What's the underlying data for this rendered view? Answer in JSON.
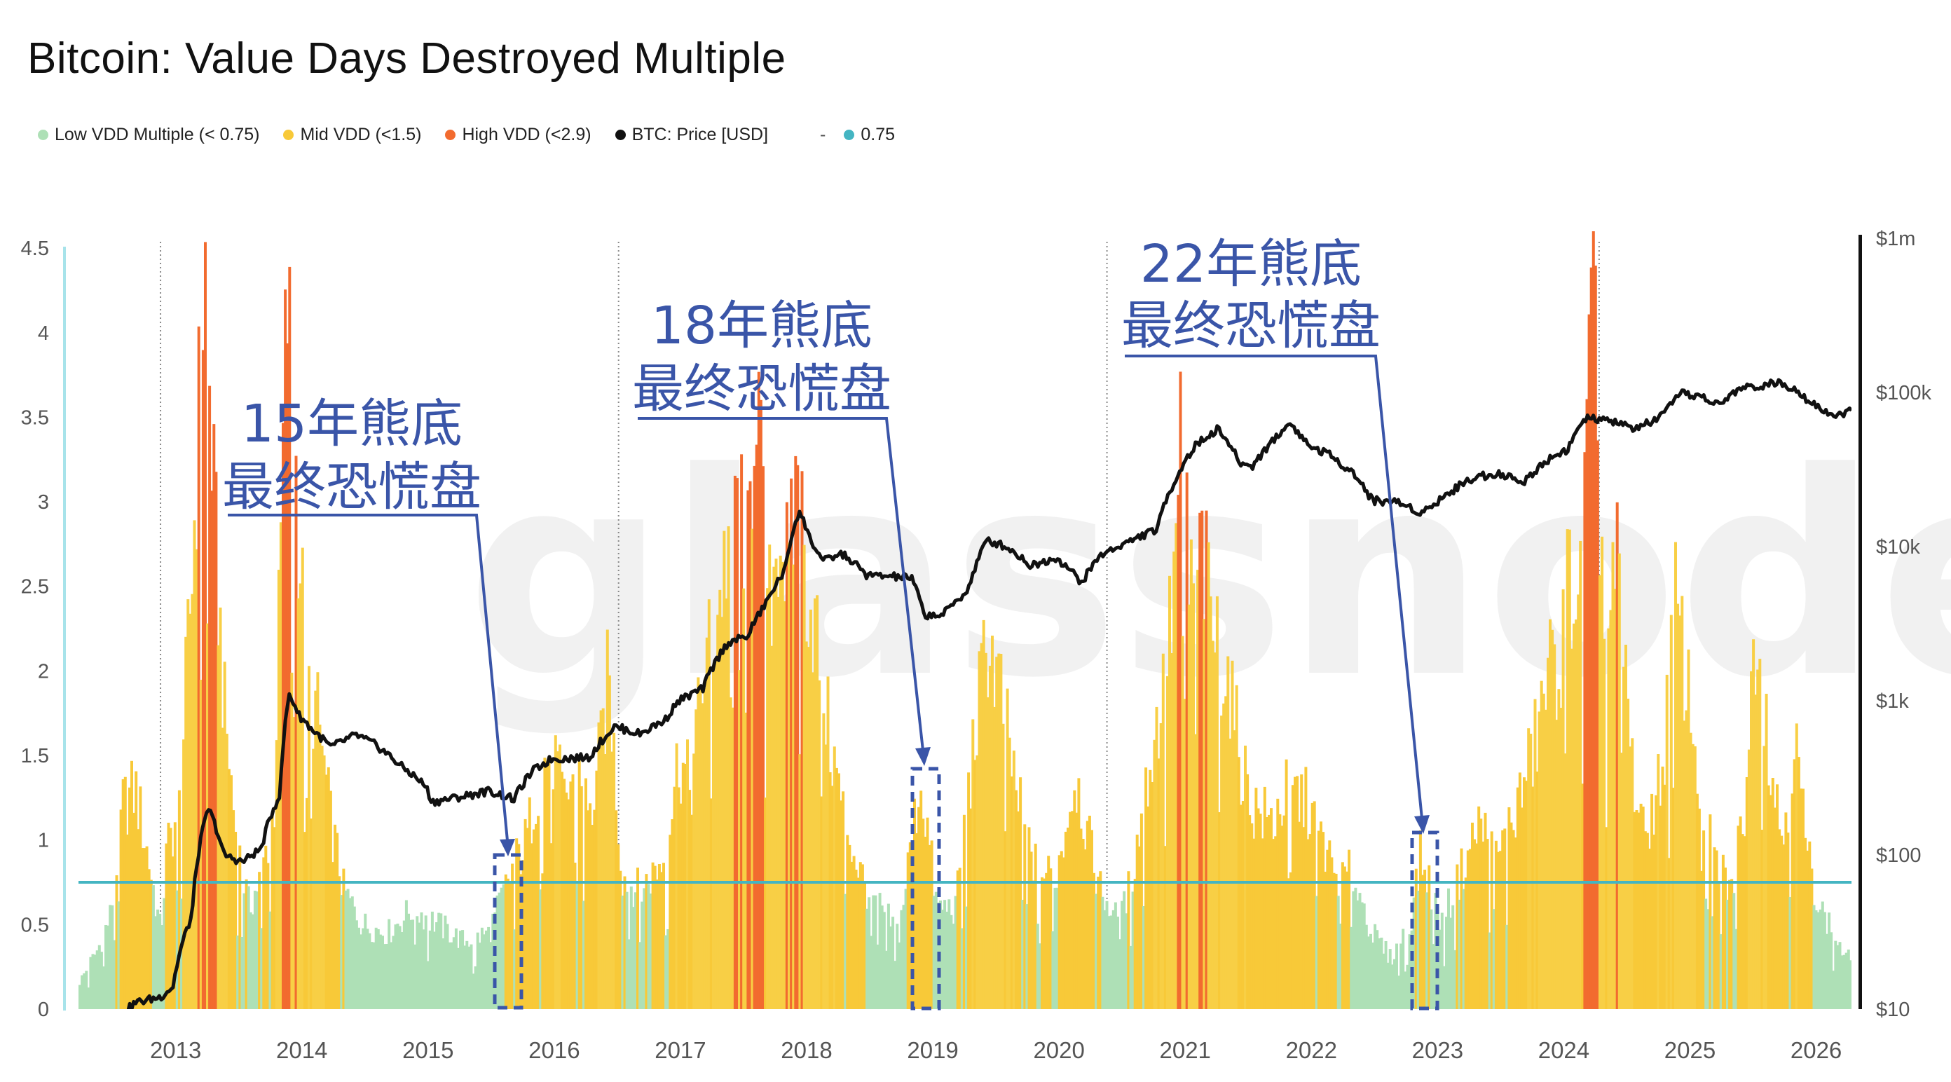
{
  "title": "Bitcoin: Value Days Destroyed Multiple",
  "legend": [
    {
      "label": "Low VDD Multiple (< 0.75)",
      "color": "#aee0b6"
    },
    {
      "label": "Mid VDD (<1.5)",
      "color": "#f8c938"
    },
    {
      "label": "High VDD (<2.9)",
      "color": "#f26b2f"
    },
    {
      "label": "BTC: Price [USD]",
      "color": "#111111"
    },
    {
      "label": "-",
      "color": ""
    },
    {
      "label": "0.75",
      "color": "#44b5c2"
    }
  ],
  "watermark": "glassnode",
  "annotations": [
    {
      "line1": "15年熊底",
      "line2": "最终恐慌盘",
      "target_year": 2015.7
    },
    {
      "line1": "18年熊底",
      "line2": "最终恐慌盘",
      "target_year": 2018.95
    },
    {
      "line1": "22年熊底",
      "line2": "最终恐慌盘",
      "target_year": 2022.9
    }
  ],
  "chart_data": {
    "type": "area",
    "title": "Bitcoin: Value Days Destroyed Multiple",
    "x_ticks": [
      "2013",
      "2014",
      "2015",
      "2016",
      "2017",
      "2018",
      "2019",
      "2020",
      "2021",
      "2022",
      "2023",
      "2024",
      "2025",
      "2026"
    ],
    "y_left_ticks": [
      "0",
      "0.5",
      "1",
      "1.5",
      "2",
      "2.5",
      "3",
      "3.5",
      "4",
      "4.5"
    ],
    "y_left_range": [
      0,
      4.6
    ],
    "y_right_ticks": [
      "$10",
      "$100",
      "$1k",
      "$10k",
      "$100k",
      "$1m"
    ],
    "y_right_scale": "log",
    "y_right_range": [
      3,
      1000000
    ],
    "x_range": [
      2012.25,
      2026.3
    ],
    "threshold": 0.75,
    "cycle_lines": [
      2012.9,
      2016.53,
      2020.4,
      2024.3
    ],
    "bands": {
      "low_max": 0.75,
      "mid_max": 1.5,
      "high_max": 2.9
    },
    "series": [
      {
        "name": "VDD Multiple",
        "points": [
          [
            2012.25,
            0.15
          ],
          [
            2012.4,
            0.35
          ],
          [
            2012.5,
            0.55
          ],
          [
            2012.6,
            1.2
          ],
          [
            2012.7,
            1.3
          ],
          [
            2012.8,
            0.9
          ],
          [
            2012.9,
            0.45
          ],
          [
            2012.95,
            0.95
          ],
          [
            2013.05,
            1.2
          ],
          [
            2013.15,
            2.6
          ],
          [
            2013.25,
            4.4
          ],
          [
            2013.32,
            3.0
          ],
          [
            2013.4,
            1.8
          ],
          [
            2013.5,
            1.0
          ],
          [
            2013.6,
            0.6
          ],
          [
            2013.7,
            0.8
          ],
          [
            2013.8,
            1.2
          ],
          [
            2013.9,
            4.2
          ],
          [
            2013.95,
            3.5
          ],
          [
            2014.05,
            2.0
          ],
          [
            2014.15,
            1.7
          ],
          [
            2014.25,
            1.1
          ],
          [
            2014.35,
            0.7
          ],
          [
            2014.5,
            0.5
          ],
          [
            2014.7,
            0.45
          ],
          [
            2014.9,
            0.6
          ],
          [
            2015.1,
            0.5
          ],
          [
            2015.3,
            0.4
          ],
          [
            2015.5,
            0.45
          ],
          [
            2015.7,
            0.85
          ],
          [
            2015.8,
            1.0
          ],
          [
            2015.9,
            1.4
          ],
          [
            2016.0,
            1.55
          ],
          [
            2016.1,
            1.2
          ],
          [
            2016.2,
            1.5
          ],
          [
            2016.3,
            1.1
          ],
          [
            2016.4,
            1.6
          ],
          [
            2016.45,
            2.0
          ],
          [
            2016.5,
            1.4
          ],
          [
            2016.55,
            0.8
          ],
          [
            2016.7,
            0.7
          ],
          [
            2016.9,
            0.9
          ],
          [
            2017.0,
            1.5
          ],
          [
            2017.1,
            1.3
          ],
          [
            2017.2,
            2.0
          ],
          [
            2017.3,
            2.3
          ],
          [
            2017.4,
            2.8
          ],
          [
            2017.48,
            3.3
          ],
          [
            2017.55,
            2.6
          ],
          [
            2017.62,
            3.9
          ],
          [
            2017.7,
            2.2
          ],
          [
            2017.8,
            2.9
          ],
          [
            2017.88,
            2.5
          ],
          [
            2017.95,
            3.3
          ],
          [
            2018.0,
            2.6
          ],
          [
            2018.1,
            2.2
          ],
          [
            2018.2,
            1.6
          ],
          [
            2018.3,
            1.2
          ],
          [
            2018.4,
            0.9
          ],
          [
            2018.5,
            0.7
          ],
          [
            2018.6,
            0.6
          ],
          [
            2018.75,
            0.45
          ],
          [
            2018.85,
            1.0
          ],
          [
            2018.92,
            1.35
          ],
          [
            2018.97,
            1.1
          ],
          [
            2019.05,
            0.6
          ],
          [
            2019.2,
            0.6
          ],
          [
            2019.35,
            1.6
          ],
          [
            2019.45,
            2.2
          ],
          [
            2019.55,
            1.9
          ],
          [
            2019.7,
            1.2
          ],
          [
            2019.85,
            0.8
          ],
          [
            2020.0,
            0.8
          ],
          [
            2020.15,
            1.4
          ],
          [
            2020.25,
            1.0
          ],
          [
            2020.35,
            0.7
          ],
          [
            2020.5,
            0.5
          ],
          [
            2020.6,
            0.8
          ],
          [
            2020.75,
            1.5
          ],
          [
            2020.85,
            1.9
          ],
          [
            2020.92,
            2.4
          ],
          [
            2021.0,
            3.6
          ],
          [
            2021.05,
            2.5
          ],
          [
            2021.15,
            2.7
          ],
          [
            2021.25,
            2.2
          ],
          [
            2021.35,
            2.0
          ],
          [
            2021.45,
            1.5
          ],
          [
            2021.55,
            1.2
          ],
          [
            2021.7,
            1.1
          ],
          [
            2021.85,
            1.3
          ],
          [
            2022.0,
            1.2
          ],
          [
            2022.1,
            1.0
          ],
          [
            2022.2,
            0.8
          ],
          [
            2022.35,
            0.8
          ],
          [
            2022.5,
            0.45
          ],
          [
            2022.65,
            0.3
          ],
          [
            2022.8,
            0.5
          ],
          [
            2022.88,
            0.9
          ],
          [
            2022.95,
            0.75
          ],
          [
            2023.05,
            0.5
          ],
          [
            2023.2,
            0.8
          ],
          [
            2023.35,
            1.1
          ],
          [
            2023.5,
            0.9
          ],
          [
            2023.65,
            1.2
          ],
          [
            2023.8,
            1.6
          ],
          [
            2023.9,
            2.0
          ],
          [
            2024.0,
            2.1
          ],
          [
            2024.05,
            2.6
          ],
          [
            2024.15,
            2.4
          ],
          [
            2024.25,
            4.2
          ],
          [
            2024.3,
            3.1
          ],
          [
            2024.35,
            2.0
          ],
          [
            2024.45,
            2.7
          ],
          [
            2024.55,
            1.5
          ],
          [
            2024.65,
            1.0
          ],
          [
            2024.8,
            1.4
          ],
          [
            2024.9,
            2.4
          ],
          [
            2025.0,
            1.9
          ],
          [
            2025.1,
            1.3
          ],
          [
            2025.2,
            0.9
          ],
          [
            2025.35,
            0.7
          ],
          [
            2025.45,
            1.2
          ],
          [
            2025.55,
            2.4
          ],
          [
            2025.65,
            1.5
          ],
          [
            2025.75,
            1.0
          ],
          [
            2025.85,
            1.6
          ],
          [
            2025.95,
            0.9
          ],
          [
            2026.05,
            0.6
          ],
          [
            2026.15,
            0.45
          ],
          [
            2026.25,
            0.3
          ]
        ]
      },
      {
        "name": "BTC: Price [USD]",
        "points": [
          [
            2012.25,
            5
          ],
          [
            2012.5,
            7.5
          ],
          [
            2012.7,
            11
          ],
          [
            2012.9,
            12
          ],
          [
            2013.0,
            14
          ],
          [
            2013.15,
            40
          ],
          [
            2013.28,
            200
          ],
          [
            2013.4,
            100
          ],
          [
            2013.55,
            90
          ],
          [
            2013.7,
            110
          ],
          [
            2013.85,
            250
          ],
          [
            2013.92,
            1100
          ],
          [
            2014.0,
            800
          ],
          [
            2014.1,
            650
          ],
          [
            2014.25,
            500
          ],
          [
            2014.45,
            600
          ],
          [
            2014.6,
            520
          ],
          [
            2014.8,
            380
          ],
          [
            2015.0,
            280
          ],
          [
            2015.05,
            220
          ],
          [
            2015.3,
            240
          ],
          [
            2015.5,
            260
          ],
          [
            2015.7,
            230
          ],
          [
            2015.85,
            350
          ],
          [
            2016.0,
            420
          ],
          [
            2016.3,
            430
          ],
          [
            2016.5,
            680
          ],
          [
            2016.7,
            610
          ],
          [
            2016.9,
            750
          ],
          [
            2017.0,
            990
          ],
          [
            2017.2,
            1200
          ],
          [
            2017.4,
            2400
          ],
          [
            2017.55,
            2600
          ],
          [
            2017.7,
            4300
          ],
          [
            2017.85,
            7000
          ],
          [
            2017.96,
            17000
          ],
          [
            2018.05,
            11000
          ],
          [
            2018.15,
            8000
          ],
          [
            2018.3,
            9000
          ],
          [
            2018.5,
            6500
          ],
          [
            2018.7,
            6400
          ],
          [
            2018.85,
            6300
          ],
          [
            2018.95,
            3600
          ],
          [
            2019.1,
            3600
          ],
          [
            2019.3,
            5200
          ],
          [
            2019.45,
            11000
          ],
          [
            2019.6,
            10000
          ],
          [
            2019.8,
            7500
          ],
          [
            2020.0,
            8500
          ],
          [
            2020.2,
            5800
          ],
          [
            2020.35,
            8800
          ],
          [
            2020.6,
            11000
          ],
          [
            2020.8,
            13000
          ],
          [
            2020.95,
            28000
          ],
          [
            2021.1,
            45000
          ],
          [
            2021.28,
            58000
          ],
          [
            2021.45,
            35000
          ],
          [
            2021.55,
            33000
          ],
          [
            2021.7,
            47000
          ],
          [
            2021.85,
            63000
          ],
          [
            2022.0,
            45000
          ],
          [
            2022.15,
            40000
          ],
          [
            2022.35,
            30000
          ],
          [
            2022.5,
            20000
          ],
          [
            2022.7,
            19500
          ],
          [
            2022.9,
            16500
          ],
          [
            2023.1,
            22000
          ],
          [
            2023.3,
            28000
          ],
          [
            2023.5,
            30000
          ],
          [
            2023.7,
            26000
          ],
          [
            2023.9,
            37000
          ],
          [
            2024.05,
            43000
          ],
          [
            2024.2,
            68000
          ],
          [
            2024.4,
            65000
          ],
          [
            2024.6,
            58000
          ],
          [
            2024.8,
            70000
          ],
          [
            2024.95,
            98000
          ],
          [
            2025.1,
            95000
          ],
          [
            2025.25,
            82000
          ],
          [
            2025.4,
            105000
          ],
          [
            2025.55,
            110000
          ],
          [
            2025.7,
            115000
          ],
          [
            2025.85,
            108000
          ],
          [
            2025.95,
            90000
          ],
          [
            2026.1,
            75000
          ],
          [
            2026.2,
            70000
          ],
          [
            2026.3,
            78000
          ]
        ]
      }
    ]
  }
}
